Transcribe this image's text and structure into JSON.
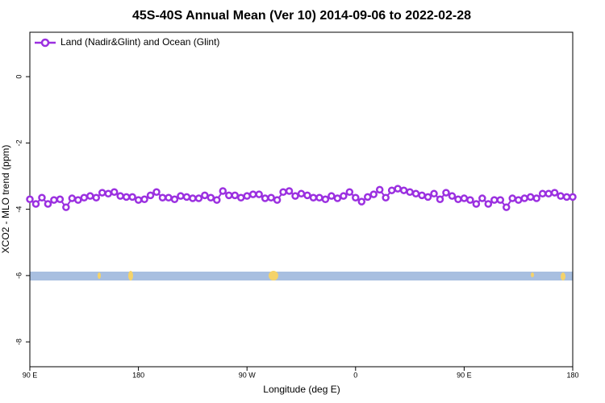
{
  "chart_data": {
    "type": "line",
    "title": "45S-40S Annual Mean (Ver 10)   2014-09-06 to 2022-02-28",
    "xlabel": "Longitude (deg E)",
    "ylabel": "XCO2 - MLO trend (ppm)",
    "xlim": [
      90,
      540
    ],
    "ylim": [
      -8.75,
      1.34
    ],
    "xticks": [
      {
        "value": 90,
        "label": "90 E"
      },
      {
        "value": 180,
        "label": "180"
      },
      {
        "value": 270,
        "label": "90 W"
      },
      {
        "value": 360,
        "label": "0"
      },
      {
        "value": 450,
        "label": "90 E"
      },
      {
        "value": 540,
        "label": "180"
      }
    ],
    "yticks": [
      0,
      -2,
      -4,
      -6,
      -8
    ],
    "legend": "top-left",
    "x": [
      90,
      95,
      100,
      105,
      110,
      115,
      120,
      125,
      130,
      135,
      140,
      145,
      150,
      155,
      160,
      165,
      170,
      175,
      180,
      185,
      190,
      195,
      200,
      205,
      210,
      215,
      220,
      225,
      230,
      235,
      240,
      245,
      250,
      255,
      260,
      265,
      270,
      275,
      280,
      285,
      290,
      295,
      300,
      305,
      310,
      315,
      320,
      325,
      330,
      335,
      340,
      345,
      350,
      355,
      360,
      365,
      370,
      375,
      380,
      385,
      390,
      395,
      400,
      405,
      410,
      415,
      420,
      425,
      430,
      435,
      440,
      445,
      450,
      455,
      460,
      465,
      470,
      475,
      480,
      485,
      490,
      495,
      500,
      505,
      510,
      515,
      520,
      525,
      530,
      535,
      540
    ],
    "series": [
      {
        "name": "Land (Nadir&Glint) and Ocean (Glint)",
        "color": "#9b30e0",
        "values": [
          -3.7,
          -3.84,
          -3.65,
          -3.84,
          -3.72,
          -3.7,
          -3.94,
          -3.67,
          -3.72,
          -3.65,
          -3.6,
          -3.65,
          -3.5,
          -3.53,
          -3.48,
          -3.6,
          -3.63,
          -3.63,
          -3.72,
          -3.7,
          -3.58,
          -3.48,
          -3.65,
          -3.65,
          -3.7,
          -3.6,
          -3.63,
          -3.67,
          -3.67,
          -3.58,
          -3.65,
          -3.72,
          -3.45,
          -3.58,
          -3.58,
          -3.65,
          -3.6,
          -3.55,
          -3.55,
          -3.67,
          -3.65,
          -3.72,
          -3.48,
          -3.45,
          -3.6,
          -3.53,
          -3.58,
          -3.65,
          -3.65,
          -3.7,
          -3.6,
          -3.67,
          -3.6,
          -3.48,
          -3.65,
          -3.77,
          -3.63,
          -3.55,
          -3.41,
          -3.65,
          -3.43,
          -3.38,
          -3.43,
          -3.48,
          -3.53,
          -3.58,
          -3.63,
          -3.53,
          -3.7,
          -3.5,
          -3.6,
          -3.7,
          -3.67,
          -3.72,
          -3.84,
          -3.67,
          -3.84,
          -3.72,
          -3.72,
          -3.94,
          -3.67,
          -3.72,
          -3.67,
          -3.63,
          -3.67,
          -3.53,
          -3.53,
          -3.5,
          -3.6,
          -3.63,
          -3.63
        ]
      }
    ]
  }
}
